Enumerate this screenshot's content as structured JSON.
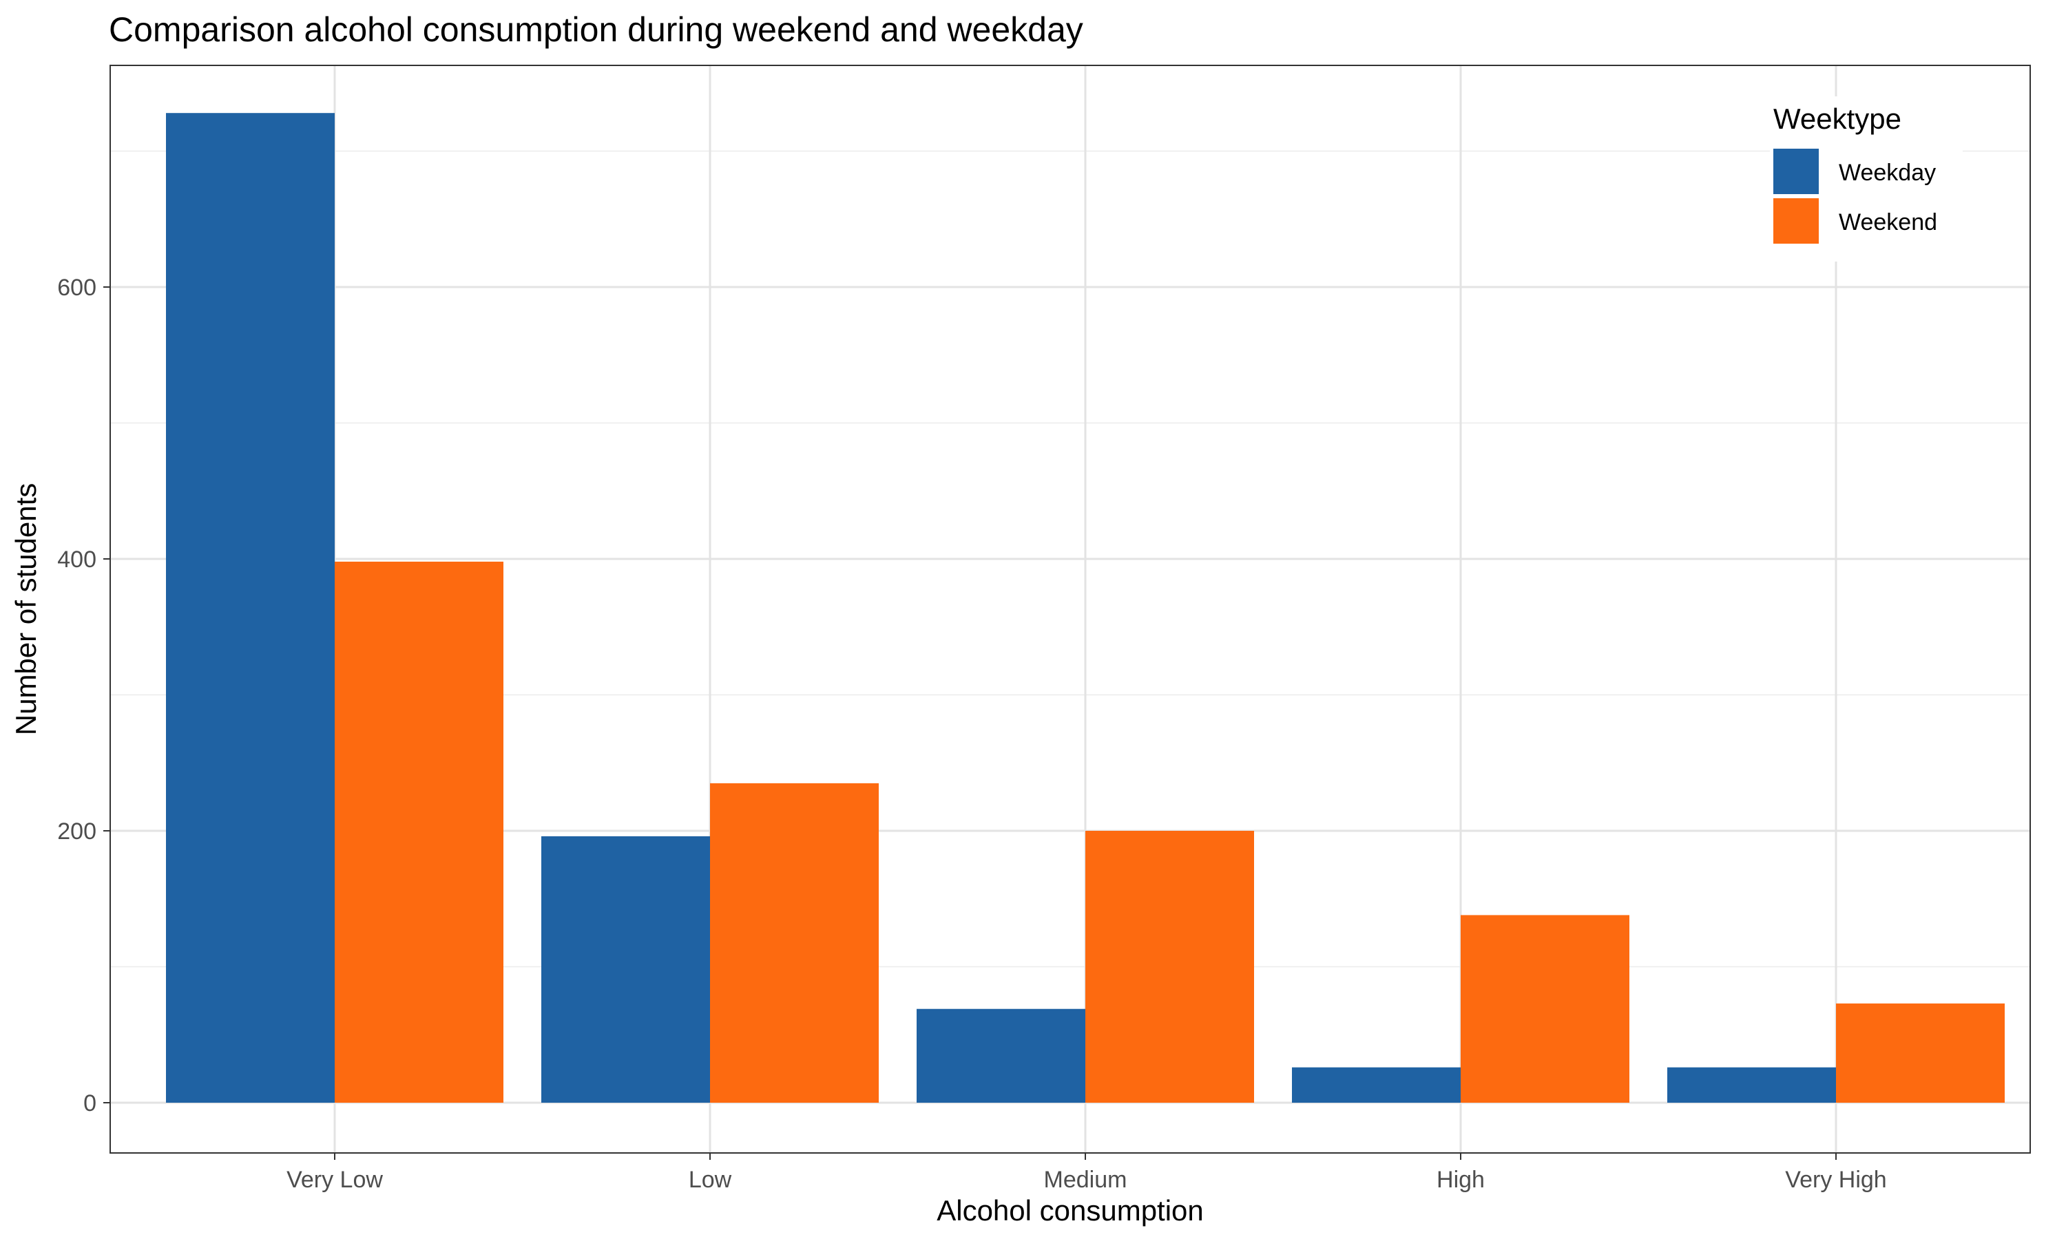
{
  "chart_data": {
    "type": "bar",
    "title": "Comparison alcohol consumption during weekend and weekday",
    "xlabel": "Alcohol consumption",
    "ylabel": "Number of students",
    "categories": [
      "Very Low",
      "Low",
      "Medium",
      "High",
      "Very High"
    ],
    "series": [
      {
        "name": "Weekday",
        "color": "#1f62a3",
        "values": [
          728,
          196,
          69,
          26,
          26
        ]
      },
      {
        "name": "Weekend",
        "color": "#fd6a10",
        "values": [
          398,
          235,
          200,
          138,
          73
        ]
      }
    ],
    "ylim": [
      0,
      740
    ],
    "y_ticks": [
      0,
      200,
      400,
      600
    ],
    "grid": true,
    "legend": {
      "title": "Weektype",
      "position": "top-right"
    }
  }
}
